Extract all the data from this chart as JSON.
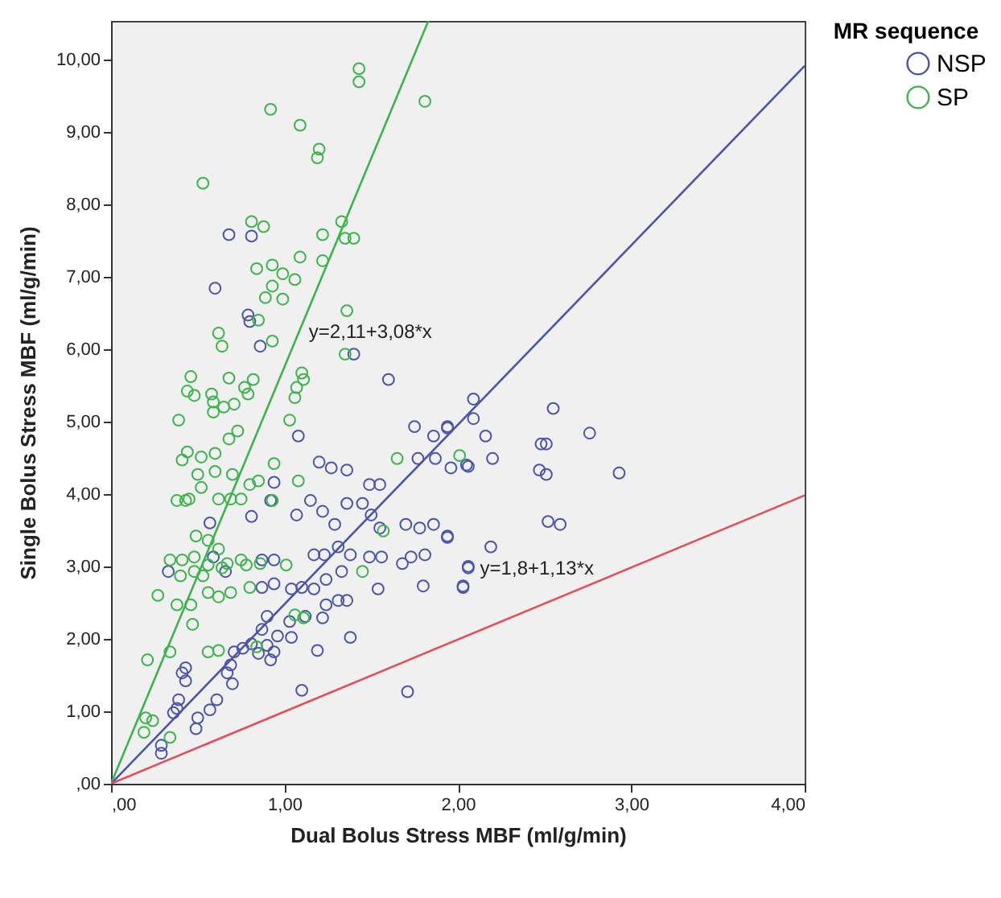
{
  "chart_data": {
    "type": "scatter",
    "xlabel": "Dual Bolus Stress MBF (ml/g/min)",
    "ylabel": "Single Bolus Stress MBF (ml/g/min)",
    "legend_title": "MR sequence",
    "legend": "right",
    "grid": false,
    "xlim": [
      0,
      4
    ],
    "ylim": [
      0,
      10.53
    ],
    "xticks": [
      {
        "value": 0,
        "label": ",00"
      },
      {
        "value": 1,
        "label": "1,00"
      },
      {
        "value": 2,
        "label": "2,00"
      },
      {
        "value": 3,
        "label": "3,00"
      },
      {
        "value": 4,
        "label": "4,00"
      }
    ],
    "yticks": [
      {
        "value": 0,
        "label": ",00"
      },
      {
        "value": 1,
        "label": "1,00"
      },
      {
        "value": 2,
        "label": "2,00"
      },
      {
        "value": 3,
        "label": "3,00"
      },
      {
        "value": 4,
        "label": "4,00"
      },
      {
        "value": 5,
        "label": "5,00"
      },
      {
        "value": 6,
        "label": "6,00"
      },
      {
        "value": 7,
        "label": "7,00"
      },
      {
        "value": 8,
        "label": "8,00"
      },
      {
        "value": 9,
        "label": "9,00"
      },
      {
        "value": 10,
        "label": "10,00"
      }
    ],
    "annotations": [
      "y=2,11+3,08*x",
      "y=1,8+1,13*x"
    ],
    "series": [
      {
        "name": "NSP",
        "color": "#4a55a8",
        "marker": "circle",
        "x": [
          0.68,
          0.81,
          0.6,
          0.79,
          0.8,
          0.86,
          1.4,
          1.6,
          1.08,
          1.2,
          1.27,
          1.36,
          1.75,
          1.94,
          1.86,
          1.77,
          1.87,
          1.96,
          2.06,
          1.49,
          1.55,
          1.45,
          1.36,
          1.15,
          1.22,
          1.07,
          0.81,
          0.92,
          0.94,
          0.57,
          1.29,
          1.5,
          1.55,
          1.7,
          1.78,
          1.86,
          1.94,
          1.17,
          1.23,
          1.31,
          1.38,
          1.49,
          1.56,
          1.68,
          1.73,
          1.81,
          2.06,
          2.03,
          1.8,
          1.54,
          1.33,
          1.24,
          1.17,
          1.1,
          1.04,
          0.94,
          0.87,
          0.94,
          0.87,
          0.59,
          0.66,
          0.33,
          1.31,
          1.24,
          1.36,
          1.12,
          1.03,
          1.22,
          0.9,
          0.87,
          0.96,
          1.04,
          0.9,
          0.81,
          0.76,
          0.71,
          0.94,
          0.85,
          0.92,
          1.38,
          1.19,
          0.69,
          0.67,
          0.7,
          0.43,
          0.41,
          0.43,
          0.61,
          0.57,
          0.5,
          0.49,
          0.39,
          0.38,
          0.36,
          0.29,
          0.29,
          1.1,
          1.71,
          2.09,
          2.55,
          2.09,
          2.16,
          1.94,
          2.48,
          2.51,
          2.76,
          2.2,
          2.05,
          2.47,
          2.51,
          2.93,
          2.52,
          2.59,
          1.94,
          2.19,
          2.06,
          2.03
        ],
        "values": [
          7.58,
          7.56,
          6.84,
          6.47,
          6.38,
          6.04,
          5.93,
          5.58,
          4.8,
          4.44,
          4.36,
          4.33,
          4.93,
          4.91,
          4.8,
          4.49,
          4.49,
          4.36,
          4.38,
          4.13,
          4.13,
          3.87,
          3.87,
          3.91,
          3.76,
          3.71,
          3.69,
          3.91,
          4.16,
          3.6,
          3.58,
          3.71,
          3.53,
          3.58,
          3.53,
          3.58,
          3.42,
          3.16,
          3.16,
          3.27,
          3.16,
          3.13,
          3.13,
          3.04,
          3.13,
          3.16,
          2.98,
          2.71,
          2.73,
          2.69,
          2.93,
          2.82,
          2.69,
          2.71,
          2.69,
          2.76,
          2.71,
          3.09,
          3.09,
          3.13,
          2.93,
          2.93,
          2.53,
          2.47,
          2.53,
          2.31,
          2.24,
          2.29,
          2.31,
          2.13,
          2.04,
          2.02,
          1.91,
          1.93,
          1.87,
          1.82,
          1.82,
          1.8,
          1.71,
          2.02,
          1.84,
          1.64,
          1.53,
          1.38,
          1.6,
          1.53,
          1.42,
          1.16,
          1.02,
          0.91,
          0.76,
          1.16,
          1.04,
          0.98,
          0.53,
          0.42,
          1.29,
          1.27,
          5.31,
          5.18,
          5.04,
          4.8,
          4.93,
          4.69,
          4.69,
          4.84,
          4.49,
          4.4,
          4.33,
          4.27,
          4.29,
          3.62,
          3.58,
          3.4,
          3.27,
          3.0,
          2.73
        ]
      },
      {
        "name": "SP",
        "color": "#3cb44b",
        "marker": "circle",
        "x": [
          1.43,
          1.43,
          1.81,
          0.92,
          1.09,
          1.2,
          1.19,
          0.53,
          0.81,
          0.88,
          1.22,
          1.33,
          1.35,
          1.4,
          1.09,
          1.22,
          0.84,
          0.93,
          0.99,
          1.06,
          0.93,
          0.89,
          0.99,
          0.85,
          1.36,
          0.62,
          0.64,
          0.93,
          1.35,
          0.46,
          0.68,
          0.82,
          1.1,
          1.11,
          0.44,
          0.48,
          0.58,
          0.59,
          0.77,
          0.79,
          1.07,
          1.06,
          0.65,
          0.71,
          0.39,
          0.59,
          1.03,
          0.68,
          0.73,
          0.44,
          0.41,
          0.52,
          0.6,
          0.5,
          0.6,
          0.7,
          0.94,
          1.08,
          0.8,
          0.85,
          0.38,
          0.43,
          0.45,
          0.52,
          0.62,
          0.69,
          0.75,
          0.93,
          0.49,
          0.56,
          0.62,
          0.67,
          0.34,
          0.41,
          0.48,
          0.48,
          0.56,
          0.64,
          0.75,
          0.78,
          0.86,
          1.01,
          0.27,
          0.4,
          0.53,
          0.56,
          0.62,
          0.69,
          0.8,
          0.38,
          0.46,
          0.47,
          0.34,
          0.56,
          0.62,
          0.21,
          0.84,
          1.06,
          1.11,
          0.2,
          0.24,
          0.19,
          0.34,
          1.65,
          2.01,
          1.57,
          1.45
        ],
        "values": [
          9.87,
          9.69,
          9.42,
          9.31,
          9.09,
          8.76,
          8.64,
          8.29,
          7.76,
          7.69,
          7.58,
          7.76,
          7.53,
          7.53,
          7.27,
          7.22,
          7.11,
          7.16,
          7.04,
          6.96,
          6.87,
          6.71,
          6.69,
          6.4,
          6.53,
          6.22,
          6.04,
          6.11,
          5.93,
          5.62,
          5.6,
          5.58,
          5.67,
          5.58,
          5.42,
          5.36,
          5.38,
          5.27,
          5.47,
          5.38,
          5.47,
          5.33,
          5.2,
          5.24,
          5.02,
          5.13,
          5.02,
          4.76,
          4.87,
          4.58,
          4.47,
          4.51,
          4.56,
          4.27,
          4.31,
          4.27,
          4.42,
          4.18,
          4.13,
          4.18,
          3.91,
          3.91,
          3.93,
          4.09,
          3.93,
          3.93,
          3.93,
          3.91,
          3.42,
          3.36,
          3.24,
          3.04,
          3.09,
          3.09,
          3.13,
          2.93,
          3.02,
          2.98,
          3.09,
          3.02,
          3.04,
          3.02,
          2.6,
          2.87,
          2.87,
          2.64,
          2.58,
          2.64,
          2.71,
          2.47,
          2.47,
          2.2,
          1.82,
          1.82,
          1.84,
          1.71,
          1.89,
          2.33,
          2.29,
          0.91,
          0.87,
          0.71,
          0.64,
          4.49,
          4.53,
          3.49,
          2.93
        ]
      },
      {
        "type": "line",
        "color": "#3cb44b",
        "x": [
          0,
          1.83
        ],
        "values": [
          0,
          10.53
        ]
      },
      {
        "type": "line",
        "color": "#4a55a8",
        "x": [
          0,
          4
        ],
        "values": [
          0,
          9.91
        ]
      },
      {
        "type": "line",
        "color": "#e0505a",
        "x": [
          0,
          4
        ],
        "values": [
          0,
          3.98
        ]
      }
    ]
  }
}
